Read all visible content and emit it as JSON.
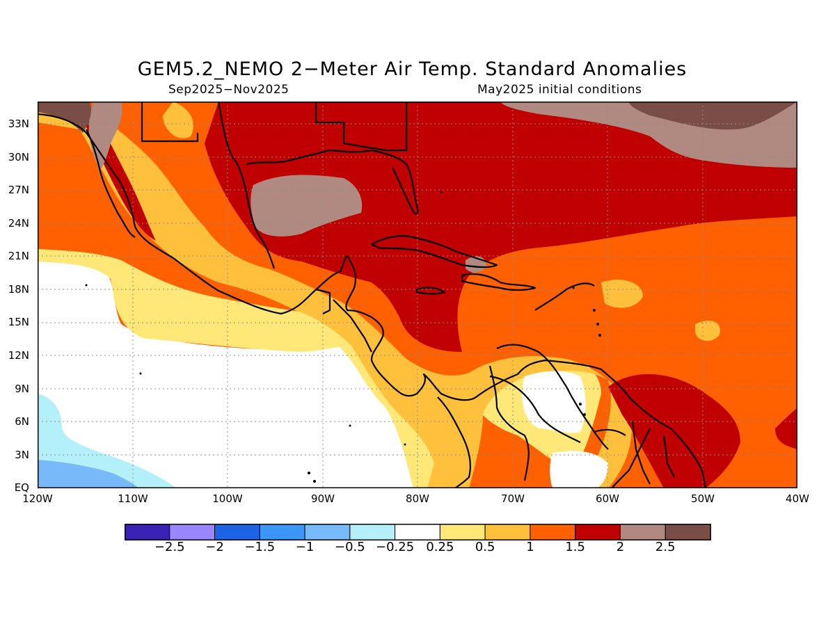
{
  "title": "GEM5.2_NEMO 2−Meter Air Temp. Standard Anomalies",
  "subtitle_left": "Sep2025−Nov2025",
  "subtitle_right": "May2025 initial conditions",
  "lat_labels": [
    "33N",
    "30N",
    "27N",
    "24N",
    "21N",
    "18N",
    "15N",
    "12N",
    "9N",
    "6N",
    "3N",
    "EQ"
  ],
  "lon_labels": [
    "120W",
    "110W",
    "100W",
    "90W",
    "80W",
    "70W",
    "60W",
    "50W",
    "40W"
  ],
  "colorbar": {
    "colors": [
      "#3a22b4",
      "#9a87ff",
      "#1d63e6",
      "#3c96f5",
      "#78b9fa",
      "#b4f0fa",
      "#ffffff",
      "#ffe878",
      "#ffc03c",
      "#ff6000",
      "#c00000",
      "#b08a80",
      "#7a4e46"
    ],
    "labels": [
      "−2.5",
      "−2",
      "−1.5",
      "−1",
      "−0.5",
      "−0.25",
      "0.25",
      "0.5",
      "1",
      "1.5",
      "2",
      "2.5"
    ]
  }
}
